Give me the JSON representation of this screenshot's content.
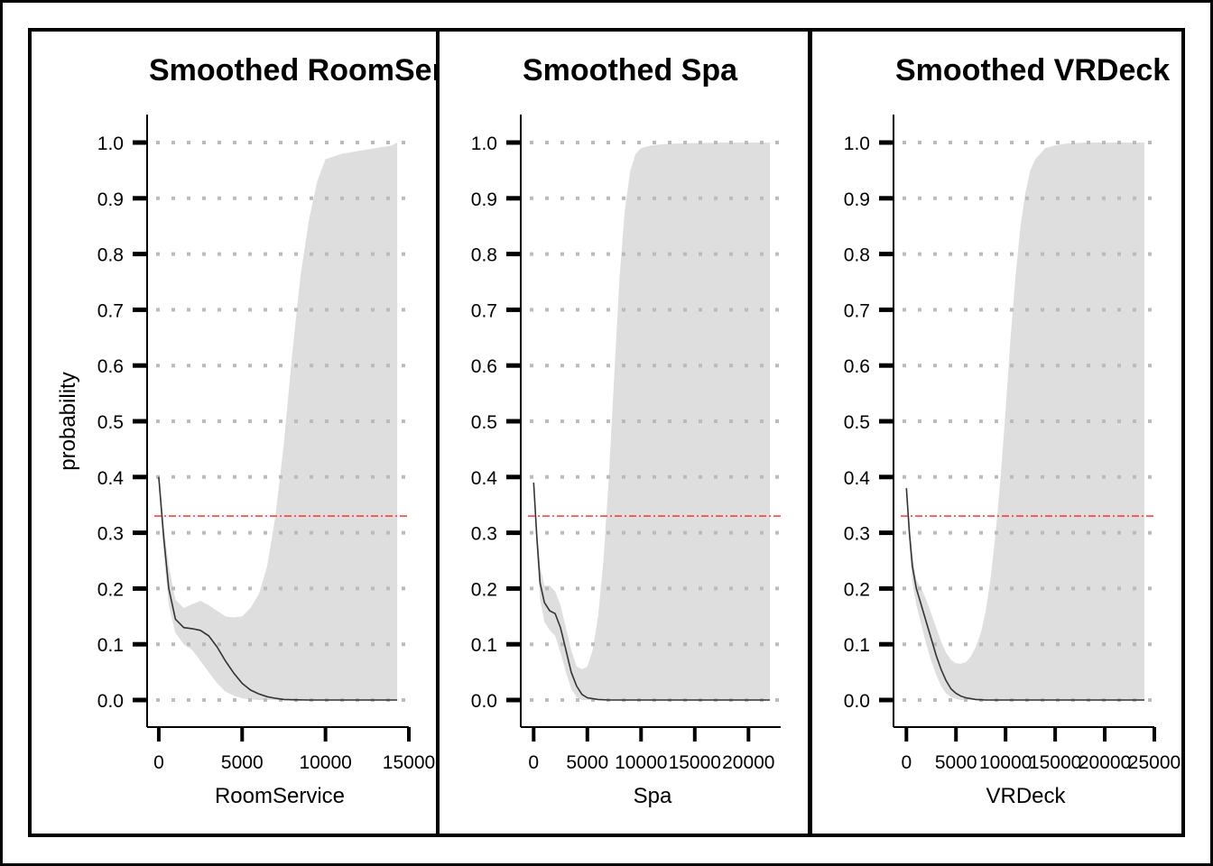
{
  "colors": {
    "band": "#dedede",
    "line": "#333333",
    "reference_line": "#ff2020",
    "grid": "#bbbbbb",
    "frame": "#000000"
  },
  "chart_data": [
    {
      "type": "line",
      "title": "Smoothed RoomService",
      "xlabel": "RoomService",
      "ylabel": "probability",
      "xlim": [
        -700,
        15000
      ],
      "ylim": [
        -0.05,
        1.05
      ],
      "x_ticks": [
        0,
        5000,
        10000,
        15000
      ],
      "y_ticks": [
        0.0,
        0.1,
        0.2,
        0.3,
        0.4,
        0.5,
        0.6,
        0.7,
        0.8,
        0.9,
        1.0
      ],
      "grid": "horizontal dotted",
      "reference_line_y": 0.33,
      "series": [
        {
          "kind": "line",
          "x": [
            0,
            300,
            600,
            1000,
            1500,
            2000,
            2500,
            3000,
            3500,
            4000,
            4500,
            5000,
            5500,
            6000,
            6500,
            7000,
            7500,
            8000,
            9000,
            10000,
            11000,
            12000,
            13000,
            14000,
            14300
          ],
          "y": [
            0.4,
            0.29,
            0.2,
            0.145,
            0.13,
            0.128,
            0.125,
            0.115,
            0.095,
            0.07,
            0.048,
            0.03,
            0.018,
            0.011,
            0.006,
            0.003,
            0.001,
            0.0005,
            0.0,
            0.0,
            0.0,
            0.0,
            0.0,
            0.0,
            0.0
          ]
        },
        {
          "kind": "band",
          "x": [
            0,
            300,
            600,
            1000,
            1500,
            2000,
            2500,
            3000,
            3500,
            4000,
            4500,
            5000,
            5500,
            6000,
            6500,
            7000,
            7500,
            8000,
            8500,
            9000,
            9500,
            10000,
            11000,
            12000,
            13000,
            14000,
            14300
          ],
          "lower": [
            0.39,
            0.26,
            0.17,
            0.12,
            0.1,
            0.09,
            0.07,
            0.05,
            0.03,
            0.015,
            0.008,
            0.003,
            0.001,
            0.0,
            0.0,
            0.0,
            0.0,
            0.0,
            0.0,
            0.0,
            0.0,
            0.0,
            0.0,
            0.0,
            0.0,
            0.0,
            0.0
          ],
          "upper": [
            0.41,
            0.31,
            0.24,
            0.18,
            0.165,
            0.172,
            0.178,
            0.17,
            0.16,
            0.15,
            0.148,
            0.15,
            0.165,
            0.19,
            0.24,
            0.33,
            0.46,
            0.62,
            0.76,
            0.86,
            0.93,
            0.97,
            0.98,
            0.985,
            0.99,
            0.995,
            1.0
          ]
        }
      ]
    },
    {
      "type": "line",
      "title": "Smoothed Spa",
      "xlabel": "Spa",
      "ylabel": "",
      "xlim": [
        -1200,
        23000
      ],
      "ylim": [
        -0.05,
        1.05
      ],
      "x_ticks": [
        0,
        5000,
        10000,
        15000,
        20000
      ],
      "y_ticks": [
        0.0,
        0.1,
        0.2,
        0.3,
        0.4,
        0.5,
        0.6,
        0.7,
        0.8,
        0.9,
        1.0
      ],
      "grid": "horizontal dotted",
      "reference_line_y": 0.33,
      "series": [
        {
          "kind": "line",
          "x": [
            0,
            300,
            600,
            1000,
            1500,
            2000,
            2500,
            3000,
            3500,
            4000,
            4500,
            5000,
            6000,
            7000,
            8000,
            10000,
            15000,
            20000,
            22000
          ],
          "y": [
            0.39,
            0.29,
            0.21,
            0.175,
            0.16,
            0.155,
            0.13,
            0.09,
            0.05,
            0.025,
            0.01,
            0.004,
            0.001,
            0.0,
            0.0,
            0.0,
            0.0,
            0.0,
            0.0
          ]
        },
        {
          "kind": "band",
          "x": [
            0,
            300,
            600,
            1000,
            1500,
            2000,
            2500,
            3000,
            3500,
            4000,
            4500,
            5000,
            5500,
            6000,
            6500,
            7000,
            7500,
            8000,
            8500,
            9000,
            9500,
            10000,
            11000,
            12000,
            13000,
            15000,
            18000,
            20000,
            22000
          ],
          "lower": [
            0.385,
            0.27,
            0.18,
            0.14,
            0.125,
            0.115,
            0.085,
            0.05,
            0.02,
            0.005,
            0.0,
            0.0,
            0.0,
            0.0,
            0.0,
            0.0,
            0.0,
            0.0,
            0.0,
            0.0,
            0.0,
            0.0,
            0.0,
            0.0,
            0.0,
            0.0,
            0.0,
            0.0,
            0.0
          ],
          "upper": [
            0.395,
            0.31,
            0.24,
            0.205,
            0.205,
            0.195,
            0.17,
            0.13,
            0.09,
            0.06,
            0.055,
            0.06,
            0.09,
            0.15,
            0.25,
            0.4,
            0.58,
            0.76,
            0.88,
            0.95,
            0.98,
            0.99,
            0.995,
            0.997,
            0.998,
            0.999,
            1.0,
            1.0,
            1.0
          ]
        }
      ]
    },
    {
      "type": "line",
      "title": "Smoothed VRDeck",
      "xlabel": "VRDeck",
      "ylabel": "",
      "xlim": [
        -1300,
        25000
      ],
      "ylim": [
        -0.05,
        1.05
      ],
      "x_ticks": [
        0,
        5000,
        10000,
        15000,
        20000,
        25000
      ],
      "y_ticks": [
        0.0,
        0.1,
        0.2,
        0.3,
        0.4,
        0.5,
        0.6,
        0.7,
        0.8,
        0.9,
        1.0
      ],
      "grid": "horizontal dotted",
      "reference_line_y": 0.33,
      "series": [
        {
          "kind": "line",
          "x": [
            0,
            300,
            600,
            1000,
            1500,
            2000,
            2500,
            3000,
            3500,
            4000,
            4500,
            5000,
            5500,
            6000,
            7000,
            8000,
            10000,
            15000,
            20000,
            24000
          ],
          "y": [
            0.38,
            0.3,
            0.24,
            0.2,
            0.17,
            0.14,
            0.11,
            0.08,
            0.055,
            0.035,
            0.02,
            0.012,
            0.007,
            0.004,
            0.001,
            0.0,
            0.0,
            0.0,
            0.0,
            0.0
          ]
        },
        {
          "kind": "band",
          "x": [
            0,
            300,
            600,
            1000,
            1500,
            2000,
            2500,
            3000,
            3500,
            4000,
            4500,
            5000,
            5500,
            6000,
            6500,
            7000,
            7500,
            8000,
            8500,
            9000,
            9500,
            10000,
            10500,
            11000,
            11500,
            12000,
            12500,
            13000,
            14000,
            15000,
            16000,
            18000,
            20000,
            22000,
            24000
          ],
          "lower": [
            0.375,
            0.28,
            0.21,
            0.17,
            0.135,
            0.1,
            0.07,
            0.045,
            0.025,
            0.012,
            0.005,
            0.002,
            0.0,
            0.0,
            0.0,
            0.0,
            0.0,
            0.0,
            0.0,
            0.0,
            0.0,
            0.0,
            0.0,
            0.0,
            0.0,
            0.0,
            0.0,
            0.0,
            0.0,
            0.0,
            0.0,
            0.0,
            0.0,
            0.0,
            0.0
          ],
          "upper": [
            0.385,
            0.32,
            0.26,
            0.215,
            0.2,
            0.18,
            0.155,
            0.13,
            0.105,
            0.085,
            0.072,
            0.066,
            0.065,
            0.068,
            0.078,
            0.095,
            0.12,
            0.16,
            0.22,
            0.3,
            0.4,
            0.52,
            0.65,
            0.76,
            0.85,
            0.91,
            0.95,
            0.97,
            0.99,
            0.995,
            0.998,
            1.0,
            1.0,
            1.0,
            1.0
          ]
        }
      ]
    }
  ]
}
